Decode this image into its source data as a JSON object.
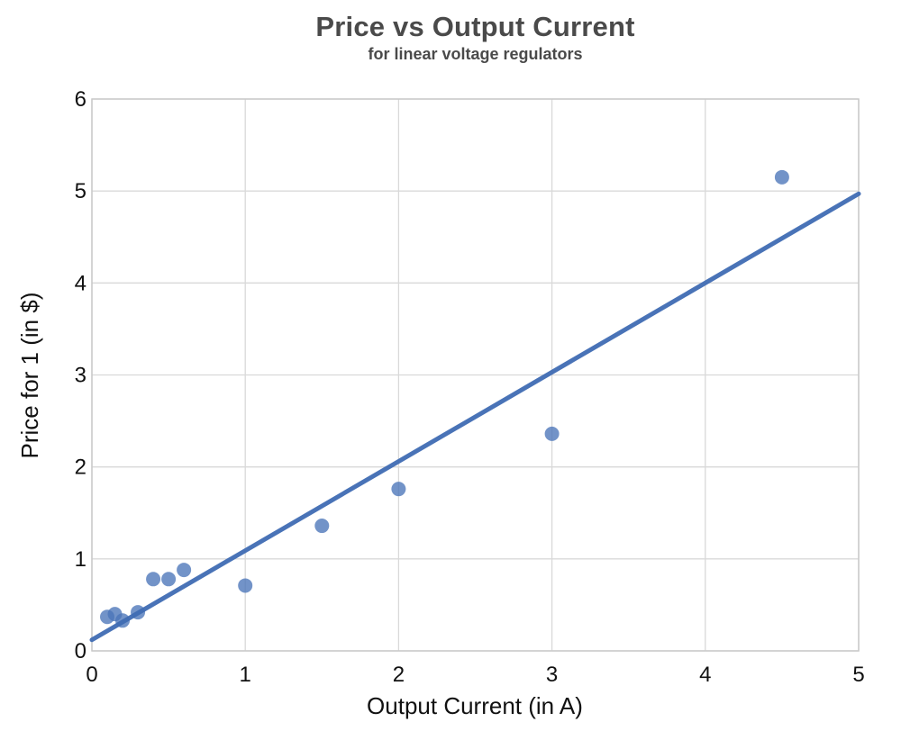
{
  "chart_data": {
    "type": "scatter",
    "title": "Price vs Output Current",
    "subtitle": "for linear voltage regulators",
    "xlabel": "Output Current (in A)",
    "ylabel": "Price for 1 (in $)",
    "xlim": [
      0,
      5
    ],
    "ylim": [
      0,
      6
    ],
    "xticks": [
      0,
      1,
      2,
      3,
      4,
      5
    ],
    "yticks": [
      0,
      1,
      2,
      3,
      4,
      5,
      6
    ],
    "grid": true,
    "legend": "none",
    "points": [
      {
        "x": 0.1,
        "y": 0.37
      },
      {
        "x": 0.15,
        "y": 0.4
      },
      {
        "x": 0.2,
        "y": 0.33
      },
      {
        "x": 0.3,
        "y": 0.42
      },
      {
        "x": 0.4,
        "y": 0.78
      },
      {
        "x": 0.5,
        "y": 0.78
      },
      {
        "x": 0.6,
        "y": 0.88
      },
      {
        "x": 1.0,
        "y": 0.71
      },
      {
        "x": 1.5,
        "y": 1.36
      },
      {
        "x": 2.0,
        "y": 1.76
      },
      {
        "x": 3.0,
        "y": 2.36
      },
      {
        "x": 4.5,
        "y": 5.15
      }
    ],
    "trendline": {
      "x1": 0,
      "y1": 0.12,
      "x2": 5,
      "y2": 4.97
    },
    "colors": {
      "marker": "#4a74b8",
      "trendline": "#3f6cb3",
      "grid": "#d9d9d9",
      "plot_border": "#c9c9c9",
      "tick_text": "#111111",
      "title_text": "#4a4a4a"
    },
    "style": {
      "marker_radius": 8,
      "marker_opacity": 0.78,
      "trendline_width": 5
    }
  }
}
